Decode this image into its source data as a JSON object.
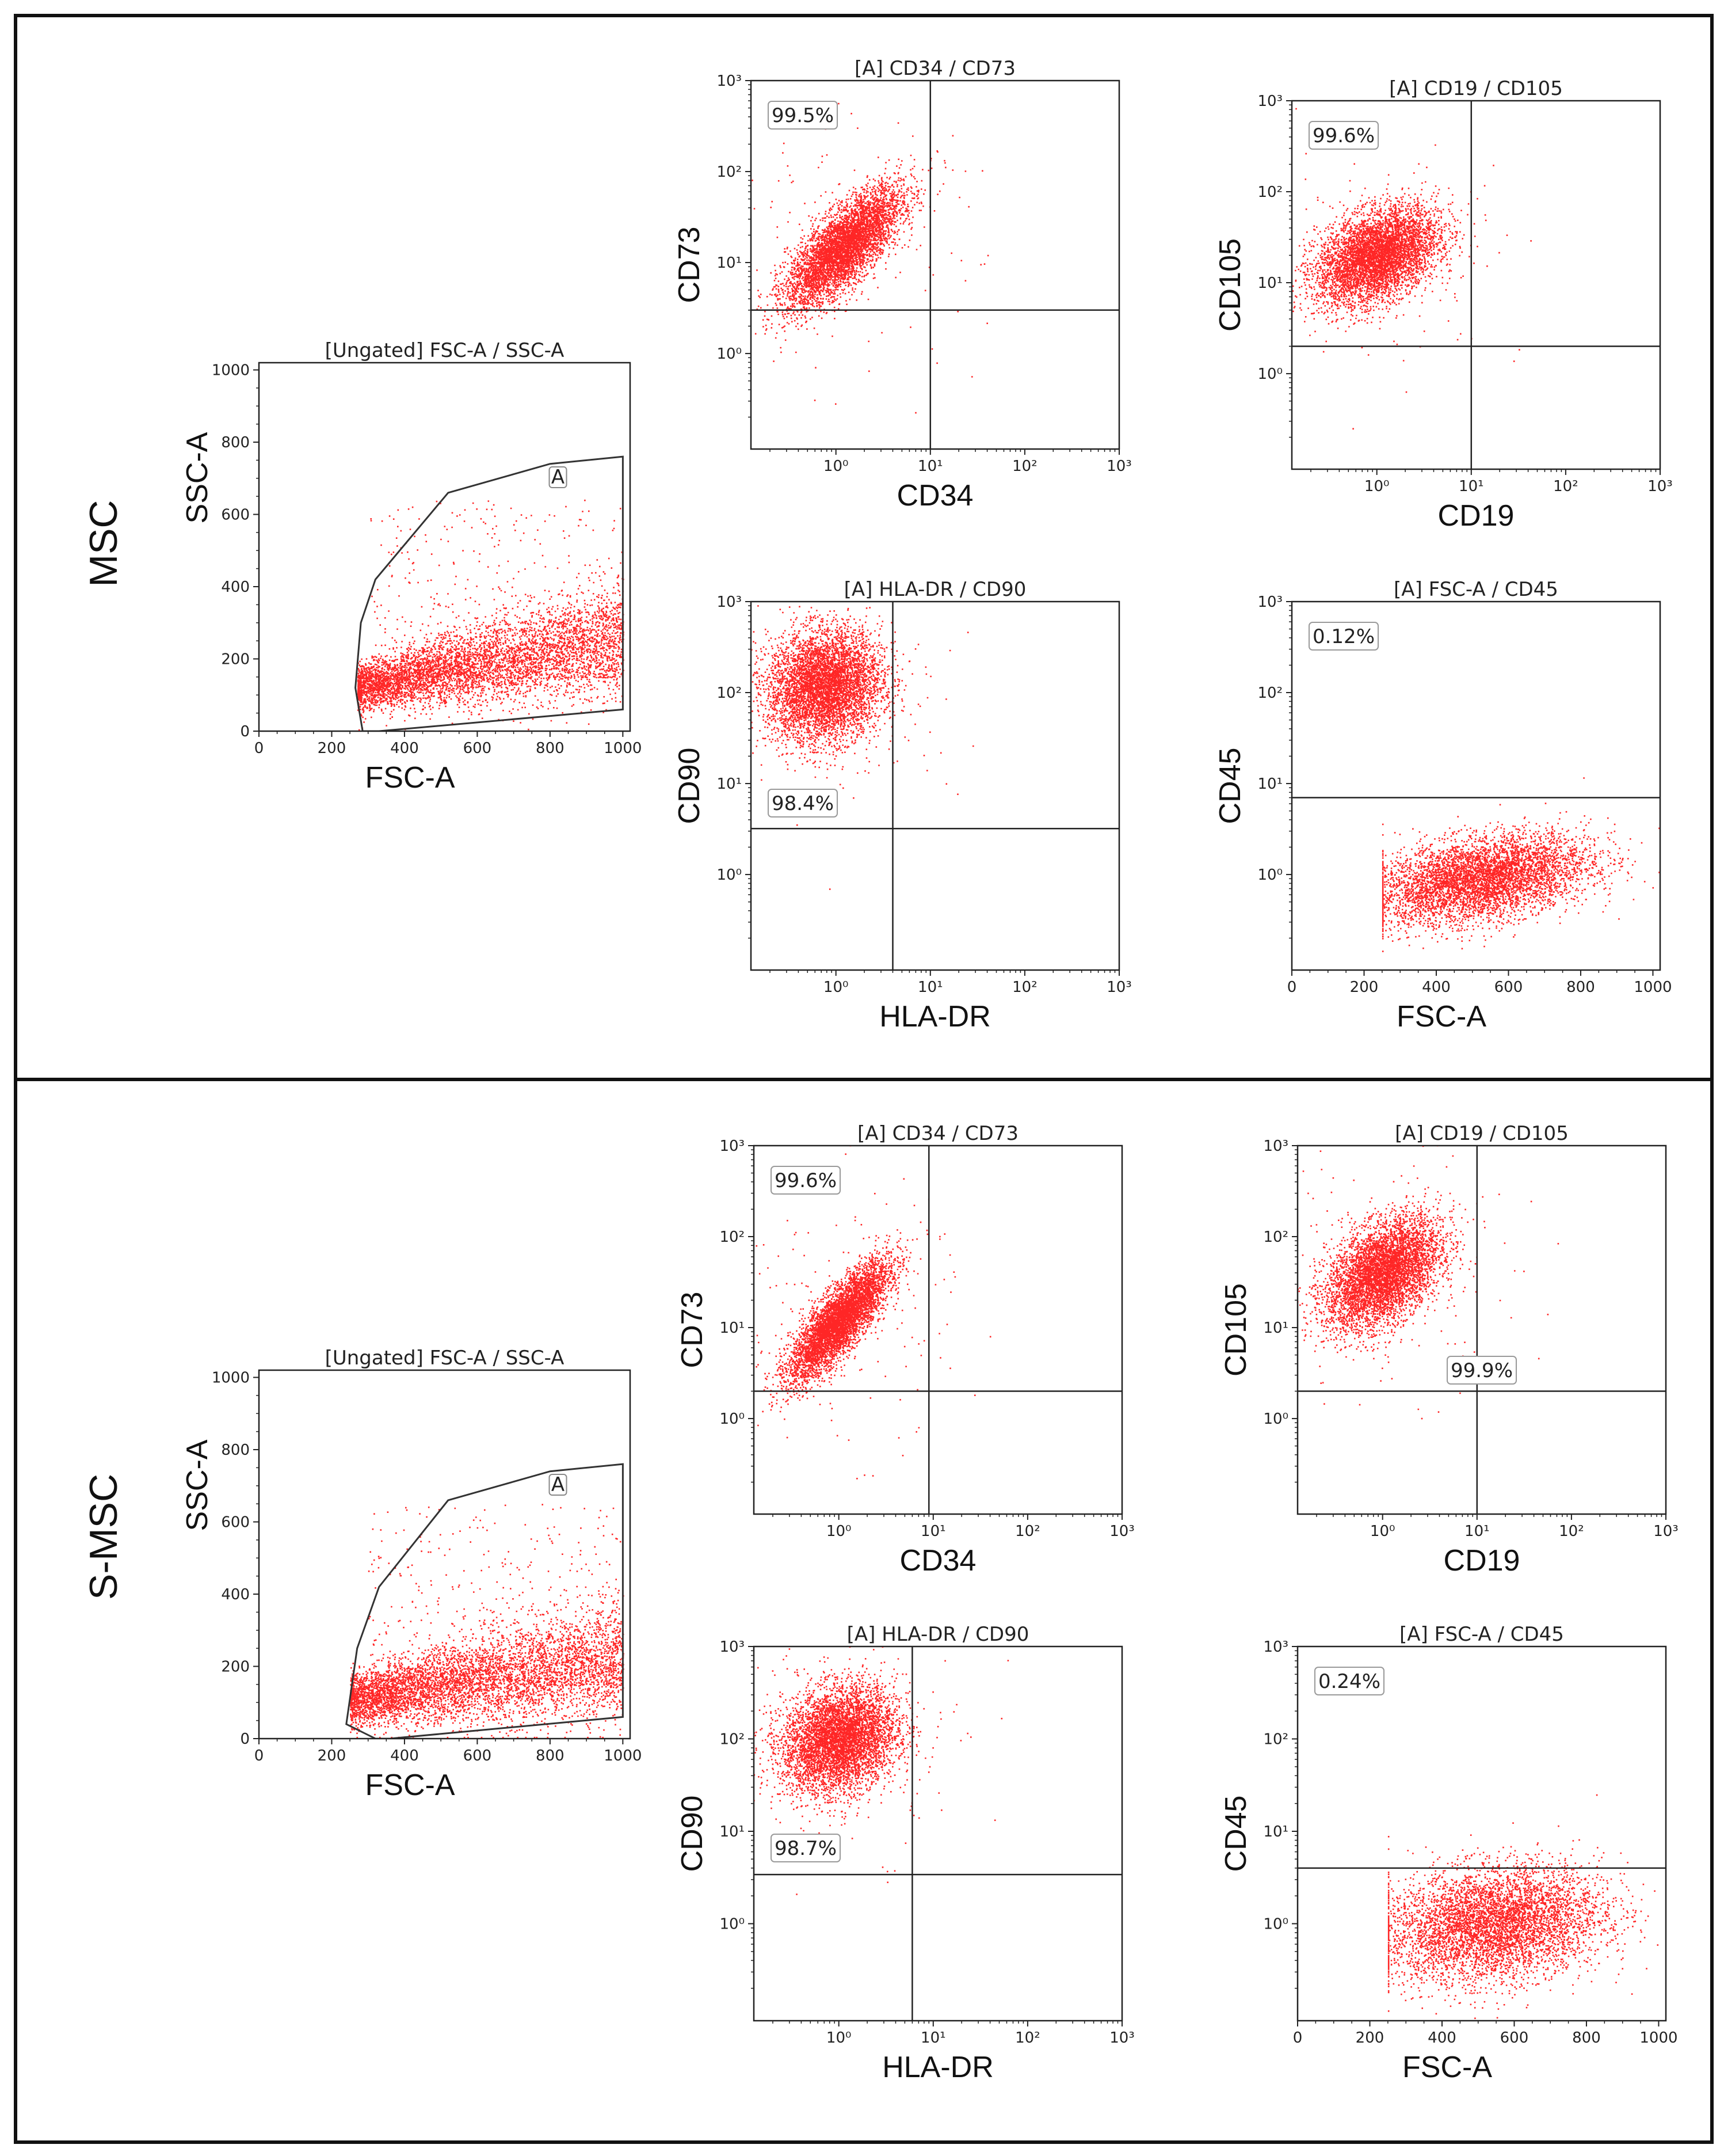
{
  "panels": [
    {
      "sample": "MSC"
    },
    {
      "sample": "S-MSC"
    }
  ],
  "chart_data": [
    {
      "type": "scatter",
      "sample": "MSC",
      "title": "[Ungated] FSC-A / SSC-A",
      "xlabel": "FSC-A",
      "ylabel": "SSC-A",
      "xlim": [
        0,
        1000
      ],
      "ylim": [
        0,
        1000
      ],
      "x_ticks": [
        "0",
        "200",
        "400",
        "600",
        "800",
        "1000"
      ],
      "y_ticks": [
        "0",
        "200",
        "400",
        "600",
        "800",
        "1000"
      ],
      "gate": {
        "label": "A",
        "polygon": [
          [
            285,
            0
          ],
          [
            265,
            120
          ],
          [
            280,
            300
          ],
          [
            320,
            420
          ],
          [
            520,
            660
          ],
          [
            800,
            740
          ],
          [
            1000,
            760
          ],
          [
            1000,
            60
          ],
          [
            330,
            0
          ]
        ]
      },
      "cloud": {
        "shape": "diag",
        "x_range": [
          270,
          1000
        ],
        "y_at_x_low": 120,
        "y_at_x_high": 260,
        "spread": 55
      },
      "color": "#ff0000"
    },
    {
      "type": "scatter",
      "sample": "MSC",
      "title": "[A] CD34 / CD73",
      "xlabel": "CD34",
      "ylabel": "CD73",
      "xscale": "log",
      "yscale": "log",
      "x_ticks": [
        "10⁰",
        "10¹",
        "10²",
        "10³"
      ],
      "y_ticks": [
        "10⁰",
        "10¹",
        "10²",
        "10³"
      ],
      "quadrant": {
        "x": 10,
        "y": 3
      },
      "percentages": [
        {
          "value": "99.5%",
          "quadrant": "upper-left"
        }
      ],
      "cloud": {
        "center": [
          1.2,
          15
        ],
        "sd": [
          0.3,
          0.32
        ],
        "corr": 0.75
      },
      "color": "#ff0000"
    },
    {
      "type": "scatter",
      "sample": "MSC",
      "title": "[A] CD19 / CD105",
      "xlabel": "CD19",
      "ylabel": "CD105",
      "xscale": "log",
      "yscale": "log",
      "x_ticks": [
        "10⁰",
        "10¹",
        "10²",
        "10³"
      ],
      "y_ticks": [
        "10⁰",
        "10¹",
        "10²",
        "10³"
      ],
      "quadrant": {
        "x": 10,
        "y": 2
      },
      "percentages": [
        {
          "value": "99.6%",
          "quadrant": "upper-left"
        }
      ],
      "cloud": {
        "center": [
          1.0,
          20
        ],
        "sd": [
          0.32,
          0.26
        ],
        "corr": 0.4
      },
      "color": "#ff0000"
    },
    {
      "type": "scatter",
      "sample": "MSC",
      "title": "[A] HLA-DR / CD90",
      "xlabel": "HLA-DR",
      "ylabel": "CD90",
      "xscale": "log",
      "yscale": "log",
      "x_ticks": [
        "10⁰",
        "10¹",
        "10²",
        "10³"
      ],
      "y_ticks": [
        "10⁰",
        "10¹",
        "10²",
        "10³"
      ],
      "quadrant": {
        "x": 4,
        "y": 3.2
      },
      "percentages": [
        {
          "value": "98.4%",
          "quadrant": "upper-left"
        }
      ],
      "cloud": {
        "center": [
          0.75,
          120
        ],
        "sd": [
          0.3,
          0.3
        ],
        "corr": 0.1
      },
      "color": "#ff0000"
    },
    {
      "type": "scatter",
      "sample": "MSC",
      "title": "[A] FSC-A / CD45",
      "xlabel": "FSC-A",
      "ylabel": "CD45",
      "xlim": [
        0,
        1000
      ],
      "yscale": "log",
      "x_ticks": [
        "0",
        "200",
        "400",
        "600",
        "800",
        "1000"
      ],
      "y_ticks": [
        "10⁰",
        "10¹",
        "10²",
        "10³"
      ],
      "quadrant": {
        "y": 7
      },
      "percentages": [
        {
          "value": "0.12%",
          "quadrant": "upper-left"
        }
      ],
      "cloud": {
        "shape": "fsc",
        "x_center": 520,
        "x_sd": 150,
        "y_center": 0.9,
        "y_sd": 0.22,
        "slope": 0.0006
      },
      "color": "#ff0000"
    },
    {
      "type": "scatter",
      "sample": "S-MSC",
      "title": "[Ungated] FSC-A / SSC-A",
      "xlabel": "FSC-A",
      "ylabel": "SSC-A",
      "xlim": [
        0,
        1000
      ],
      "ylim": [
        0,
        1000
      ],
      "x_ticks": [
        "0",
        "200",
        "400",
        "600",
        "800",
        "1000"
      ],
      "y_ticks": [
        "0",
        "200",
        "400",
        "600",
        "800",
        "1000"
      ],
      "gate": {
        "label": "A",
        "polygon": [
          [
            320,
            0
          ],
          [
            240,
            40
          ],
          [
            270,
            250
          ],
          [
            330,
            420
          ],
          [
            520,
            660
          ],
          [
            800,
            740
          ],
          [
            1000,
            760
          ],
          [
            1000,
            60
          ],
          [
            360,
            0
          ]
        ]
      },
      "cloud": {
        "shape": "diag",
        "x_range": [
          250,
          1000
        ],
        "y_at_x_low": 110,
        "y_at_x_high": 220,
        "spread": 60
      },
      "color": "#ff0000"
    },
    {
      "type": "scatter",
      "sample": "S-MSC",
      "title": "[A] CD34 / CD73",
      "xlabel": "CD34",
      "ylabel": "CD73",
      "xscale": "log",
      "yscale": "log",
      "x_ticks": [
        "10⁰",
        "10¹",
        "10²",
        "10³"
      ],
      "y_ticks": [
        "10⁰",
        "10¹",
        "10²",
        "10³"
      ],
      "quadrant": {
        "x": 9,
        "y": 2
      },
      "percentages": [
        {
          "value": "99.6%",
          "quadrant": "upper-left"
        }
      ],
      "cloud": {
        "center": [
          1.0,
          12
        ],
        "sd": [
          0.26,
          0.32
        ],
        "corr": 0.82
      },
      "color": "#ff0000"
    },
    {
      "type": "scatter",
      "sample": "S-MSC",
      "title": "[A] CD19 / CD105",
      "xlabel": "CD19",
      "ylabel": "CD105",
      "xscale": "log",
      "yscale": "log",
      "x_ticks": [
        "10⁰",
        "10¹",
        "10²",
        "10³"
      ],
      "y_ticks": [
        "10⁰",
        "10¹",
        "10²",
        "10³"
      ],
      "quadrant": {
        "x": 10,
        "y": 2
      },
      "percentages": [
        {
          "value": "99.9%",
          "quadrant": "lower-right-of-cloud"
        }
      ],
      "cloud": {
        "center": [
          1.0,
          40
        ],
        "sd": [
          0.3,
          0.3
        ],
        "corr": 0.45
      },
      "color": "#ff0000"
    },
    {
      "type": "scatter",
      "sample": "S-MSC",
      "title": "[A] HLA-DR / CD90",
      "xlabel": "HLA-DR",
      "ylabel": "CD90",
      "xscale": "log",
      "yscale": "log",
      "x_ticks": [
        "10⁰",
        "10¹",
        "10²",
        "10³"
      ],
      "y_ticks": [
        "10⁰",
        "10¹",
        "10²",
        "10³"
      ],
      "quadrant": {
        "x": 6,
        "y": 3.4
      },
      "percentages": [
        {
          "value": "98.7%",
          "quadrant": "upper-left"
        }
      ],
      "cloud": {
        "center": [
          1.0,
          100
        ],
        "sd": [
          0.3,
          0.28
        ],
        "corr": 0.2
      },
      "color": "#ff0000"
    },
    {
      "type": "scatter",
      "sample": "S-MSC",
      "title": "[A] FSC-A / CD45",
      "xlabel": "FSC-A",
      "ylabel": "CD45",
      "xlim": [
        0,
        1000
      ],
      "yscale": "log",
      "x_ticks": [
        "0",
        "200",
        "400",
        "600",
        "800",
        "1000"
      ],
      "y_ticks": [
        "10⁰",
        "10¹",
        "10²",
        "10³"
      ],
      "quadrant": {
        "y": 4
      },
      "percentages": [
        {
          "value": "0.24%",
          "quadrant": "upper-left"
        }
      ],
      "cloud": {
        "shape": "fsc",
        "x_center": 540,
        "x_sd": 150,
        "y_center": 1.0,
        "y_sd": 0.3,
        "slope": 0.0004
      },
      "color": "#ff0000"
    }
  ]
}
